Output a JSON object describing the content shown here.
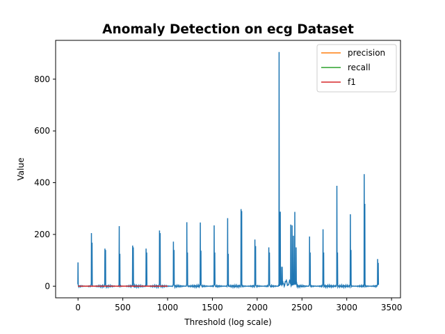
{
  "chart_data": {
    "type": "line",
    "title": "Anomaly Detection on ecg Dataset",
    "xlabel": "Threshold (log scale)",
    "ylabel": "Value",
    "xlim": [
      -250,
      3600
    ],
    "ylim": [
      -45,
      950
    ],
    "xticks": [
      0,
      500,
      1000,
      1500,
      2000,
      2500,
      3000,
      3500
    ],
    "yticks": [
      0,
      200,
      400,
      600,
      800
    ],
    "grid": false,
    "legend_position": "top-right",
    "legend": [
      {
        "label": "precision",
        "color": "#ff7f0e"
      },
      {
        "label": "recall",
        "color": "#2ca02c"
      },
      {
        "label": "f1",
        "color": "#d62728"
      }
    ],
    "series": [
      {
        "color": "#1f77b4",
        "peaks": [
          [
            0,
            92
          ],
          [
            150,
            205
          ],
          [
            157,
            168
          ],
          [
            300,
            145
          ],
          [
            307,
            140
          ],
          [
            460,
            232
          ],
          [
            467,
            125
          ],
          [
            610,
            157
          ],
          [
            617,
            150
          ],
          [
            760,
            145
          ],
          [
            767,
            130
          ],
          [
            910,
            215
          ],
          [
            917,
            205
          ],
          [
            1065,
            172
          ],
          [
            1072,
            140
          ],
          [
            1215,
            247
          ],
          [
            1222,
            130
          ],
          [
            1365,
            246
          ],
          [
            1372,
            137
          ],
          [
            1520,
            235
          ],
          [
            1527,
            130
          ],
          [
            1670,
            263
          ],
          [
            1677,
            125
          ],
          [
            1820,
            298
          ],
          [
            1827,
            290
          ],
          [
            1975,
            180
          ],
          [
            1982,
            155
          ],
          [
            2130,
            150
          ],
          [
            2137,
            130
          ],
          [
            2245,
            905
          ],
          [
            2258,
            288
          ],
          [
            2265,
            75
          ],
          [
            2280,
            75
          ],
          [
            2375,
            238
          ],
          [
            2390,
            235
          ],
          [
            2405,
            195
          ],
          [
            2420,
            287
          ],
          [
            2435,
            150
          ],
          [
            2585,
            192
          ],
          [
            2592,
            130
          ],
          [
            2735,
            220
          ],
          [
            2742,
            130
          ],
          [
            2890,
            388
          ],
          [
            2897,
            130
          ],
          [
            3040,
            278
          ],
          [
            3047,
            140
          ],
          [
            3195,
            433
          ],
          [
            3202,
            318
          ],
          [
            3345,
            105
          ],
          [
            3352,
            90
          ]
        ]
      },
      {
        "name": "precision",
        "color": "#ff7f0e",
        "x": [
          0,
          1000
        ],
        "y": [
          0,
          0
        ]
      },
      {
        "name": "recall",
        "color": "#2ca02c",
        "x": [
          0,
          1000
        ],
        "y": [
          0,
          0
        ]
      },
      {
        "name": "f1",
        "color": "#d62728",
        "x": [
          0,
          1000
        ],
        "y": [
          0,
          0
        ]
      }
    ]
  }
}
